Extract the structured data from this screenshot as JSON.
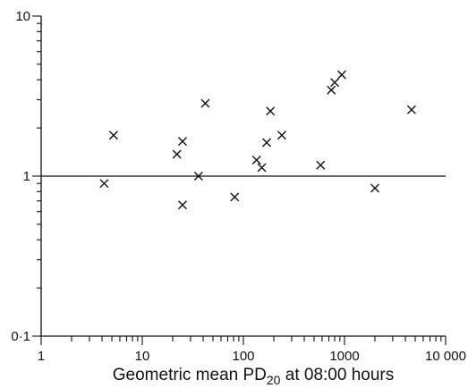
{
  "chart_data": {
    "type": "scatter",
    "title": "",
    "xlabel_main": "Geometric mean PD",
    "xlabel_sub": "20",
    "xlabel_tail": " at 08:00 hours",
    "ylabel": "",
    "xscale": "log",
    "yscale": "log",
    "xlim": [
      1,
      10000
    ],
    "ylim": [
      0.1,
      10
    ],
    "x_ticks": [
      {
        "value": 1,
        "label": "1"
      },
      {
        "value": 10,
        "label": "10"
      },
      {
        "value": 100,
        "label": "100"
      },
      {
        "value": 1000,
        "label": "1000"
      },
      {
        "value": 10000,
        "label": "10 000"
      }
    ],
    "y_ticks": [
      {
        "value": 0.1,
        "label": "0·1"
      },
      {
        "value": 1,
        "label": "1"
      },
      {
        "value": 10,
        "label": "10"
      }
    ],
    "reference_line": {
      "y": 1
    },
    "marker": "x",
    "points": [
      {
        "x": 4.2,
        "y": 0.9
      },
      {
        "x": 5.2,
        "y": 1.8
      },
      {
        "x": 22,
        "y": 1.37
      },
      {
        "x": 25,
        "y": 1.65
      },
      {
        "x": 25,
        "y": 0.66
      },
      {
        "x": 36,
        "y": 1.0
      },
      {
        "x": 42,
        "y": 2.85
      },
      {
        "x": 82,
        "y": 0.74
      },
      {
        "x": 135,
        "y": 1.26
      },
      {
        "x": 152,
        "y": 1.13
      },
      {
        "x": 170,
        "y": 1.62
      },
      {
        "x": 185,
        "y": 2.55
      },
      {
        "x": 240,
        "y": 1.8
      },
      {
        "x": 580,
        "y": 1.17
      },
      {
        "x": 740,
        "y": 3.45
      },
      {
        "x": 800,
        "y": 3.85
      },
      {
        "x": 940,
        "y": 4.3
      },
      {
        "x": 2000,
        "y": 0.84
      },
      {
        "x": 4600,
        "y": 2.6
      }
    ]
  }
}
